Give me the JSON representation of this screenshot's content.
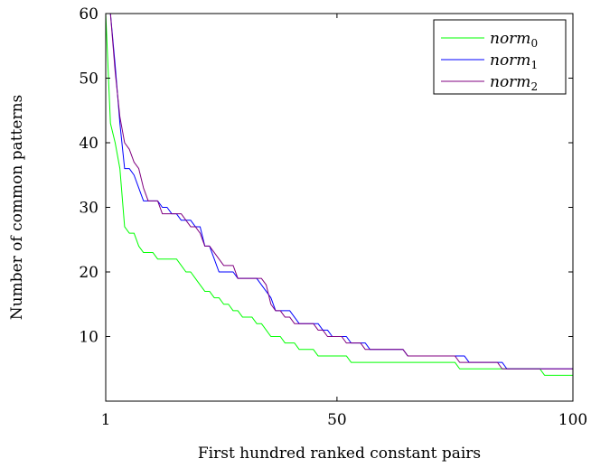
{
  "chart_data": {
    "type": "line",
    "title": "",
    "xlabel": "First hundred ranked constant pairs",
    "ylabel": "Number of common patterns",
    "xlim": [
      1,
      100
    ],
    "ylim": [
      0,
      60
    ],
    "xticks": [
      1,
      50,
      100
    ],
    "yticks": [
      10,
      20,
      30,
      40,
      50,
      60
    ],
    "grid": false,
    "legend_position": "top-right",
    "series": [
      {
        "name": "norm₀",
        "name_base": "norm",
        "name_sub": "0",
        "color": "#00ff00",
        "x": [
          1,
          2,
          3,
          4,
          5,
          6,
          7,
          8,
          9,
          10,
          11,
          12,
          13,
          14,
          15,
          16,
          17,
          18,
          19,
          20,
          21,
          22,
          23,
          24,
          25,
          26,
          27,
          28,
          29,
          30,
          31,
          32,
          33,
          34,
          35,
          36,
          37,
          38,
          39,
          40,
          41,
          42,
          43,
          44,
          45,
          46,
          47,
          48,
          49,
          50,
          51,
          52,
          53,
          54,
          55,
          56,
          57,
          58,
          59,
          60,
          61,
          62,
          63,
          64,
          65,
          66,
          67,
          68,
          69,
          70,
          71,
          72,
          73,
          74,
          75,
          76,
          77,
          78,
          79,
          80,
          81,
          82,
          83,
          84,
          85,
          86,
          87,
          88,
          89,
          90,
          91,
          92,
          93,
          94,
          95,
          96,
          97,
          98,
          99,
          100
        ],
        "values": [
          60,
          43,
          40,
          36,
          27,
          26,
          26,
          24,
          23,
          23,
          23,
          22,
          22,
          22,
          22,
          22,
          21,
          20,
          20,
          19,
          18,
          17,
          17,
          16,
          16,
          15,
          15,
          14,
          14,
          13,
          13,
          13,
          12,
          12,
          11,
          10,
          10,
          10,
          9,
          9,
          9,
          8,
          8,
          8,
          8,
          7,
          7,
          7,
          7,
          7,
          7,
          7,
          6,
          6,
          6,
          6,
          6,
          6,
          6,
          6,
          6,
          6,
          6,
          6,
          6,
          6,
          6,
          6,
          6,
          6,
          6,
          6,
          6,
          6,
          6,
          5,
          5,
          5,
          5,
          5,
          5,
          5,
          5,
          5,
          5,
          5,
          5,
          5,
          5,
          5,
          5,
          5,
          5,
          4,
          4,
          4,
          4,
          4,
          4,
          4
        ]
      },
      {
        "name": "norm₁",
        "name_base": "norm",
        "name_sub": "1",
        "color": "#0000ff",
        "x": [
          1,
          2,
          3,
          4,
          5,
          6,
          7,
          8,
          9,
          10,
          11,
          12,
          13,
          14,
          15,
          16,
          17,
          18,
          19,
          20,
          21,
          22,
          23,
          24,
          25,
          26,
          27,
          28,
          29,
          30,
          31,
          32,
          33,
          34,
          35,
          36,
          37,
          38,
          39,
          40,
          41,
          42,
          43,
          44,
          45,
          46,
          47,
          48,
          49,
          50,
          51,
          52,
          53,
          54,
          55,
          56,
          57,
          58,
          59,
          60,
          61,
          62,
          63,
          64,
          65,
          66,
          67,
          68,
          69,
          70,
          71,
          72,
          73,
          74,
          75,
          76,
          77,
          78,
          79,
          80,
          81,
          82,
          83,
          84,
          85,
          86,
          87,
          88,
          89,
          90,
          91,
          92,
          93,
          94,
          95,
          96,
          97,
          98,
          99,
          100
        ],
        "values": [
          60,
          60,
          52,
          43,
          36,
          36,
          35,
          33,
          31,
          31,
          31,
          31,
          30,
          30,
          29,
          29,
          28,
          28,
          28,
          27,
          27,
          24,
          24,
          22,
          20,
          20,
          20,
          20,
          19,
          19,
          19,
          19,
          19,
          18,
          17,
          16,
          14,
          14,
          14,
          14,
          13,
          12,
          12,
          12,
          12,
          12,
          11,
          11,
          10,
          10,
          10,
          10,
          9,
          9,
          9,
          9,
          8,
          8,
          8,
          8,
          8,
          8,
          8,
          8,
          7,
          7,
          7,
          7,
          7,
          7,
          7,
          7,
          7,
          7,
          7,
          7,
          7,
          6,
          6,
          6,
          6,
          6,
          6,
          6,
          6,
          5,
          5,
          5,
          5,
          5,
          5,
          5,
          5,
          5,
          5,
          5,
          5,
          5,
          5,
          5
        ]
      },
      {
        "name": "norm₂",
        "name_base": "norm",
        "name_sub": "2",
        "color": "#800080",
        "x": [
          1,
          2,
          3,
          4,
          5,
          6,
          7,
          8,
          9,
          10,
          11,
          12,
          13,
          14,
          15,
          16,
          17,
          18,
          19,
          20,
          21,
          22,
          23,
          24,
          25,
          26,
          27,
          28,
          29,
          30,
          31,
          32,
          33,
          34,
          35,
          36,
          37,
          38,
          39,
          40,
          41,
          42,
          43,
          44,
          45,
          46,
          47,
          48,
          49,
          50,
          51,
          52,
          53,
          54,
          55,
          56,
          57,
          58,
          59,
          60,
          61,
          62,
          63,
          64,
          65,
          66,
          67,
          68,
          69,
          70,
          71,
          72,
          73,
          74,
          75,
          76,
          77,
          78,
          79,
          80,
          81,
          82,
          83,
          84,
          85,
          86,
          87,
          88,
          89,
          90,
          91,
          92,
          93,
          94,
          95,
          96,
          97,
          98,
          99,
          100
        ],
        "values": [
          60,
          60,
          51,
          44,
          40,
          39,
          37,
          36,
          33,
          31,
          31,
          31,
          29,
          29,
          29,
          29,
          29,
          28,
          27,
          27,
          26,
          24,
          24,
          23,
          22,
          21,
          21,
          21,
          19,
          19,
          19,
          19,
          19,
          19,
          18,
          15,
          14,
          14,
          13,
          13,
          12,
          12,
          12,
          12,
          12,
          11,
          11,
          10,
          10,
          10,
          10,
          9,
          9,
          9,
          9,
          8,
          8,
          8,
          8,
          8,
          8,
          8,
          8,
          8,
          7,
          7,
          7,
          7,
          7,
          7,
          7,
          7,
          7,
          7,
          7,
          6,
          6,
          6,
          6,
          6,
          6,
          6,
          6,
          6,
          5,
          5,
          5,
          5,
          5,
          5,
          5,
          5,
          5,
          5,
          5,
          5,
          5,
          5,
          5,
          5
        ]
      }
    ]
  }
}
